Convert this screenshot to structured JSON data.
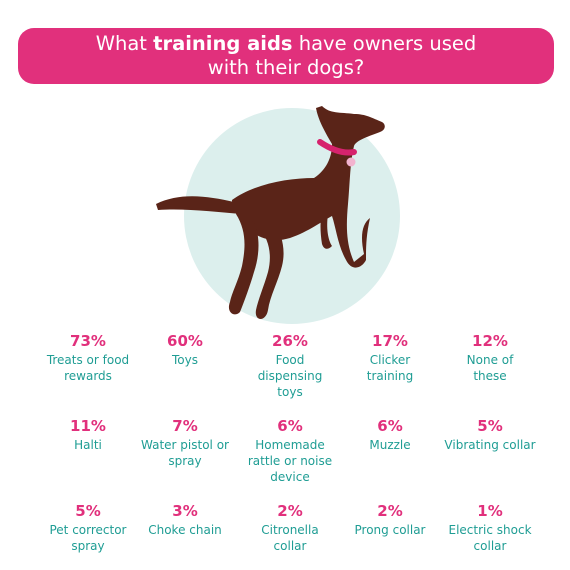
{
  "title": {
    "prefix": "What ",
    "bold": "training aids",
    "suffix": " have owners used",
    "line2": "with their dogs?"
  },
  "colors": {
    "accent": "#e1307c",
    "label": "#1f9d94",
    "dog": "#5a2418",
    "circle": "#dcefed",
    "collar": "#d6236d"
  },
  "icons": {
    "hero": "dog-silhouette-icon"
  },
  "chart_data": {
    "type": "table",
    "categories": [
      "Treats or food rewards",
      "Toys",
      "Food dispensing toys",
      "Clicker training",
      "None of these",
      "Halti",
      "Water pistol or spray",
      "Homemade rattle or noise device",
      "Muzzle",
      "Vibrating collar",
      "Pet corrector spray",
      "Choke chain",
      "Citronella collar",
      "Prong collar",
      "Electric shock collar"
    ],
    "values": [
      73,
      60,
      26,
      17,
      12,
      11,
      7,
      6,
      6,
      5,
      5,
      3,
      2,
      2,
      1
    ],
    "unit": "%"
  },
  "stats": [
    {
      "pct": "73%",
      "lines": [
        "Treats or food",
        "rewards"
      ]
    },
    {
      "pct": "60%",
      "lines": [
        "Toys"
      ]
    },
    {
      "pct": "26%",
      "lines": [
        "Food",
        "dispensing",
        "toys"
      ]
    },
    {
      "pct": "17%",
      "lines": [
        "Clicker",
        "training"
      ]
    },
    {
      "pct": "12%",
      "lines": [
        "None of",
        "these"
      ]
    },
    {
      "pct": "11%",
      "lines": [
        "Halti"
      ]
    },
    {
      "pct": "7%",
      "lines": [
        "Water pistol or",
        "spray"
      ]
    },
    {
      "pct": "6%",
      "lines": [
        "Homemade",
        "rattle or noise",
        "device"
      ]
    },
    {
      "pct": "6%",
      "lines": [
        "Muzzle"
      ]
    },
    {
      "pct": "5%",
      "lines": [
        "Vibrating collar"
      ]
    },
    {
      "pct": "5%",
      "lines": [
        "Pet corrector",
        "spray"
      ]
    },
    {
      "pct": "3%",
      "lines": [
        "Choke chain"
      ]
    },
    {
      "pct": "2%",
      "lines": [
        "Citronella",
        "collar"
      ]
    },
    {
      "pct": "2%",
      "lines": [
        "Prong collar"
      ]
    },
    {
      "pct": "1%",
      "lines": [
        "Electric shock",
        "collar"
      ]
    }
  ]
}
